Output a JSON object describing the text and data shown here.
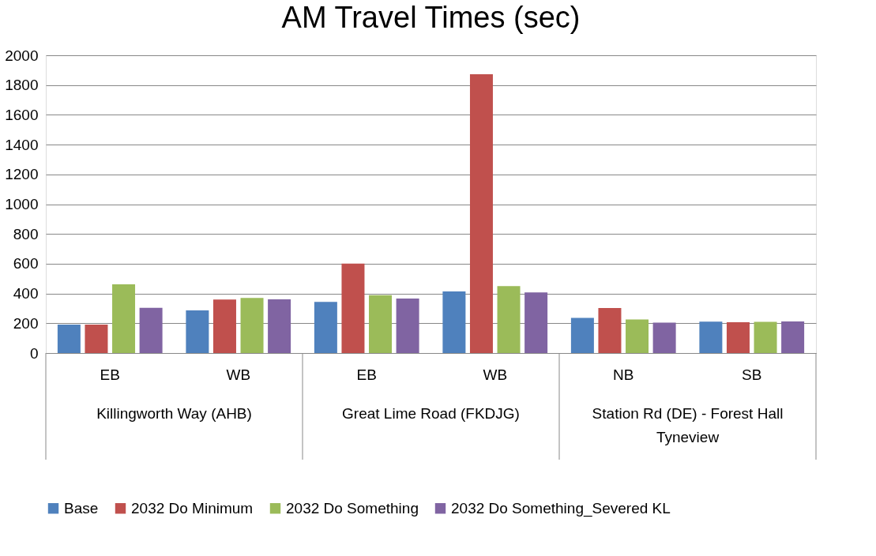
{
  "chart_data": {
    "type": "bar",
    "title": "AM Travel Times (sec)",
    "categories": [
      "EB",
      "WB",
      "EB",
      "WB",
      "NB",
      "SB"
    ],
    "annotations": [
      "Killingworth Way  (AHB)",
      "Great Lime Road  (FKDJG)",
      "Station Rd (DE) - Forest Hall Tyneview"
    ],
    "series": [
      {
        "name": "Base",
        "color": "#4f81bd",
        "values": [
          191,
          287,
          343,
          414,
          236,
          211
        ]
      },
      {
        "name": "2032 Do Minimum",
        "color": "#c0504d",
        "values": [
          191,
          359,
          601,
          1873,
          302,
          207
        ]
      },
      {
        "name": "2032 Do Something",
        "color": "#9bbb59",
        "values": [
          462,
          370,
          389,
          449,
          225,
          209
        ]
      },
      {
        "name": "2032 Do Something_Severed KL",
        "color": "#8064a2",
        "values": [
          304,
          361,
          366,
          407,
          204,
          212
        ]
      }
    ],
    "ylim": [
      0,
      2000
    ],
    "yticks": [
      0,
      200,
      400,
      600,
      800,
      1000,
      1200,
      1400,
      1600,
      1800,
      2000
    ],
    "grid": "y",
    "legend": "bottom"
  }
}
